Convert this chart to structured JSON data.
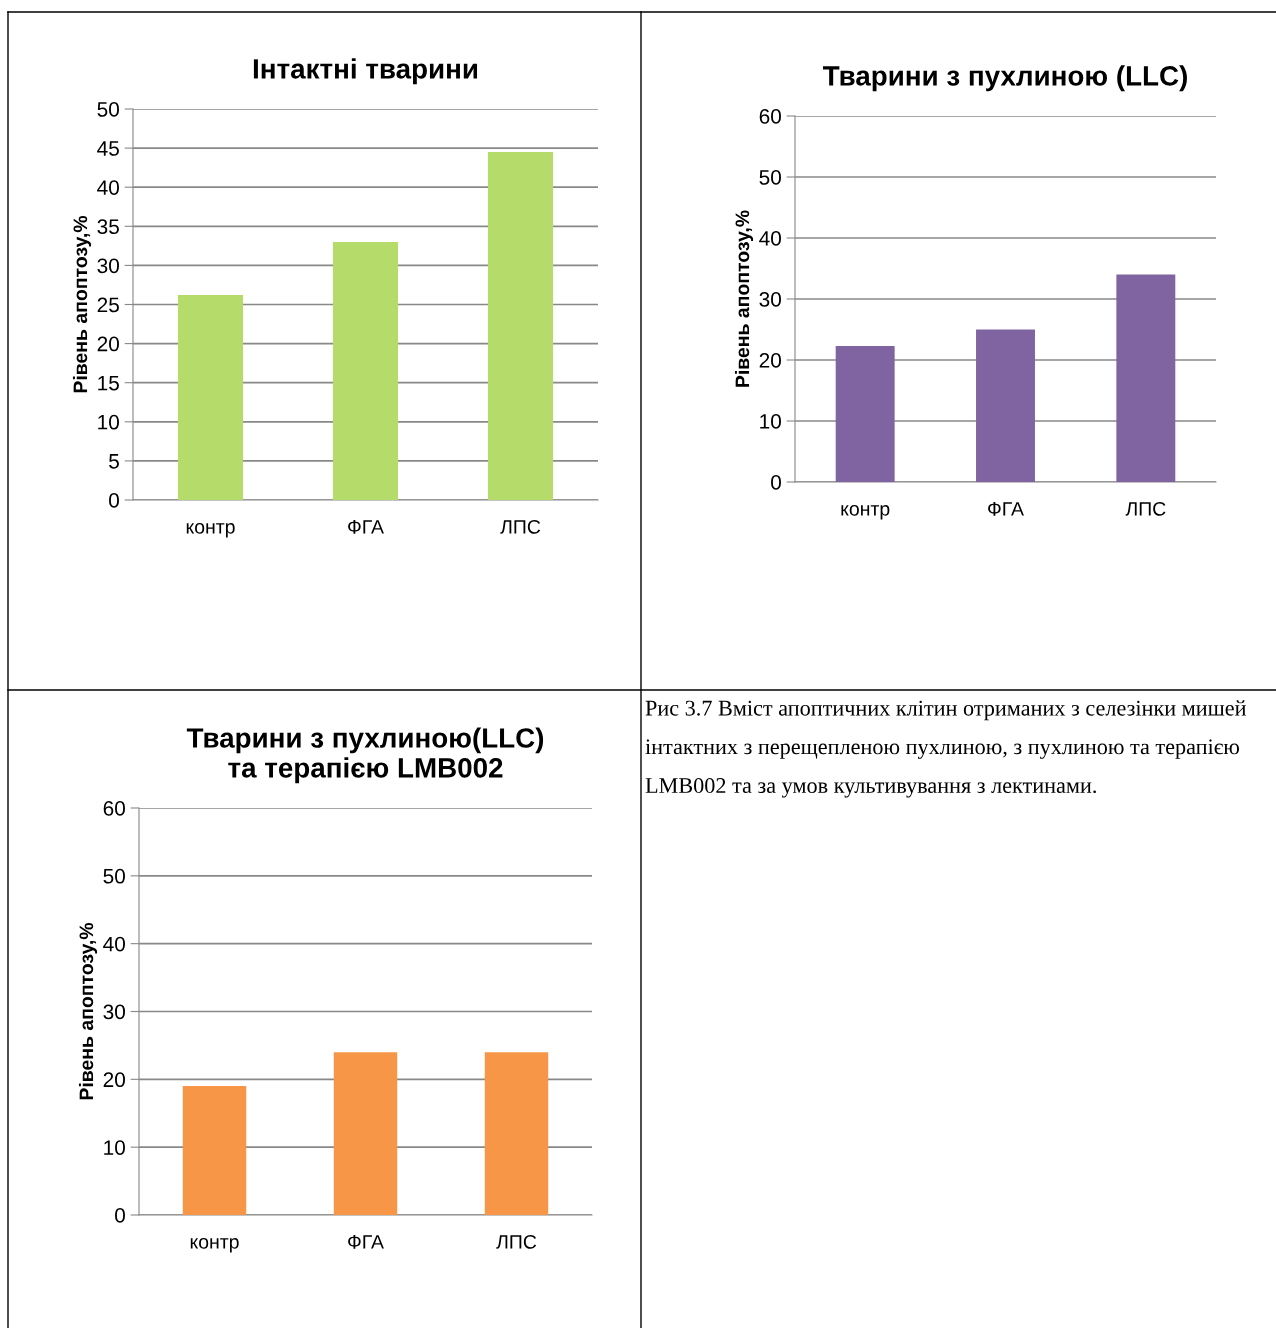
{
  "chart_data": [
    {
      "type": "bar",
      "title": "Інтактні тварини",
      "ylabel": "Рівень апоптозу,%",
      "categories": [
        "контр",
        "ФГА",
        "ЛПС"
      ],
      "values": [
        26.2,
        33,
        44.5
      ],
      "color": "#b5db6a",
      "ylim": [
        0,
        50
      ],
      "yticks": [
        0,
        5,
        10,
        15,
        20,
        25,
        30,
        35,
        40,
        45,
        50
      ],
      "grid": "y"
    },
    {
      "type": "bar",
      "title": "Тварини з пухлиною (LLC)",
      "ylabel": "Рівень апоптозу,%",
      "categories": [
        "контр",
        "ФГА",
        "ЛПС"
      ],
      "values": [
        22.3,
        25,
        34
      ],
      "color": "#8064a2",
      "ylim": [
        0,
        60
      ],
      "yticks": [
        0,
        10,
        20,
        30,
        40,
        50,
        60
      ],
      "grid": "y"
    },
    {
      "type": "bar",
      "title": "Тварини з пухлиною(LLC)\nта терапією LMB002",
      "ylabel": "Рівень апоптозу,%",
      "categories": [
        "контр",
        "ФГА",
        "ЛПС"
      ],
      "values": [
        19,
        24,
        24
      ],
      "color": "#f79646",
      "ylim": [
        0,
        60
      ],
      "yticks": [
        0,
        10,
        20,
        30,
        40,
        50,
        60
      ],
      "grid": "y"
    },
    {
      "type": "other",
      "annotations": [
        "Рис 3.7 Вміст апоптичних клітин отриманих з селезінки мишей інтактних з перещепленою пухлиною, з пухлиною та терапією LMB002 та за умов культивування з лектинами."
      ]
    }
  ]
}
